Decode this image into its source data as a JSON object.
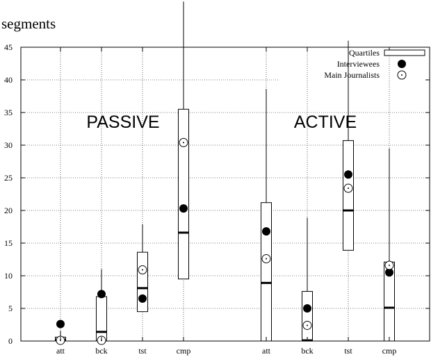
{
  "chart_data": {
    "type": "box",
    "ylabel": "segments",
    "ylim": [
      0,
      45
    ],
    "yticks": [
      "0",
      "5",
      "10",
      "15",
      "20",
      "25",
      "30",
      "35",
      "40",
      "45"
    ],
    "groups": [
      {
        "label": "PASSIVE",
        "categories": [
          {
            "label": "att",
            "q1": 0,
            "median": 0.2,
            "q3": 0.6,
            "whisker_low": 0,
            "whisker_high": 1.6,
            "interviewees": 2.6,
            "main_journalists": 0.1
          },
          {
            "label": "bck",
            "q1": 0,
            "median": 1.4,
            "q3": 6.8,
            "whisker_low": 0,
            "whisker_high": 11.0,
            "interviewees": 7.2,
            "main_journalists": 0.1
          },
          {
            "label": "tst",
            "q1": 4.5,
            "median": 8.1,
            "q3": 13.6,
            "whisker_low": 0,
            "whisker_high": 17.9,
            "interviewees": 6.5,
            "main_journalists": 10.9
          },
          {
            "label": "cmp",
            "q1": 9.5,
            "median": 16.6,
            "q3": 35.5,
            "whisker_low": 0,
            "whisker_high": 52.0,
            "interviewees": 20.3,
            "main_journalists": 30.4
          }
        ]
      },
      {
        "label": "ACTIVE",
        "categories": [
          {
            "label": "att",
            "q1": 0,
            "median": 8.9,
            "q3": 21.2,
            "whisker_low": 0,
            "whisker_high": 38.6,
            "interviewees": 16.8,
            "main_journalists": 12.6
          },
          {
            "label": "bck",
            "q1": 0,
            "median": 0.1,
            "q3": 7.6,
            "whisker_low": 0,
            "whisker_high": 18.9,
            "interviewees": 5.0,
            "main_journalists": 2.4
          },
          {
            "label": "tst",
            "q1": 13.9,
            "median": 20.0,
            "q3": 30.7,
            "whisker_low": 0,
            "whisker_high": 46.0,
            "interviewees": 25.5,
            "main_journalists": 23.4
          },
          {
            "label": "cmp",
            "q1": 0,
            "median": 5.1,
            "q3": 12.1,
            "whisker_low": 0,
            "whisker_high": 29.5,
            "interviewees": 10.5,
            "main_journalists": 11.6
          }
        ]
      }
    ],
    "legend": {
      "placement": "top-right",
      "entries": [
        {
          "name": "Quartiles",
          "marker": "box"
        },
        {
          "name": "Interviewees",
          "marker": "filled-circle"
        },
        {
          "name": "Main Journalists",
          "marker": "open-circle-dot"
        }
      ]
    },
    "grid": true
  }
}
